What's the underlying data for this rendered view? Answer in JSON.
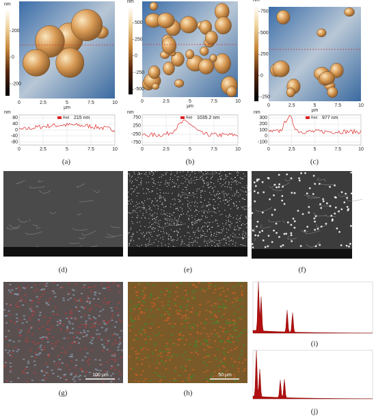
{
  "panels": [
    {
      "label": "(a)",
      "z_unit": "nm",
      "zlim": [
        -290,
        360
      ],
      "zticks": [
        200,
        0,
        -200
      ],
      "x_unit": "µm",
      "xlim": [
        0,
        10
      ],
      "xticks": [
        0,
        2.5,
        5,
        7.5,
        10
      ],
      "profile": {
        "y_unit": "nm",
        "ylim": [
          -100,
          100
        ],
        "yticks": [
          80,
          40,
          0,
          -40,
          -80
        ],
        "xticks": [
          0,
          2.5,
          5,
          7.5,
          10
        ],
        "legend": "Red",
        "annotation": "215 nm"
      }
    },
    {
      "label": "(b)",
      "z_unit": "nm",
      "zlim": [
        -580,
        740
      ],
      "zticks": [
        500,
        250,
        0,
        -250,
        -500
      ],
      "x_unit": "µm",
      "xlim": [
        0,
        10
      ],
      "xticks": [
        0,
        2.5,
        5,
        7.5,
        10
      ],
      "profile": {
        "y_unit": "nm",
        "ylim": [
          -900,
          900
        ],
        "yticks": [
          750,
          250,
          -250,
          -750
        ],
        "xticks": [
          0,
          2.5,
          5,
          7.5,
          10
        ],
        "legend": "Red",
        "annotation": "1035.2 nm"
      }
    },
    {
      "label": "(c)",
      "z_unit": "nm",
      "zlim": [
        -300,
        820
      ],
      "zticks": [
        750,
        500,
        250,
        0,
        -250
      ],
      "x_unit": "µm",
      "xlim": [
        0,
        10
      ],
      "xticks": [
        0,
        2.5,
        5,
        7.5,
        10
      ],
      "profile": {
        "y_unit": "nm",
        "ylim": [
          -150,
          350
        ],
        "yticks": [
          300,
          200,
          100,
          0,
          -100
        ],
        "xticks": [
          0,
          2.5,
          5,
          7.5,
          10
        ],
        "legend": "Red",
        "annotation": "977 nm"
      }
    },
    {
      "label": "(d)"
    },
    {
      "label": "(e)"
    },
    {
      "label": "(f)"
    },
    {
      "label": "(g)",
      "scale_bar": "100 µm"
    },
    {
      "label": "(h)",
      "scale_bar": "50 µm"
    },
    {
      "label": "(i)"
    },
    {
      "label": "(j)"
    }
  ]
}
